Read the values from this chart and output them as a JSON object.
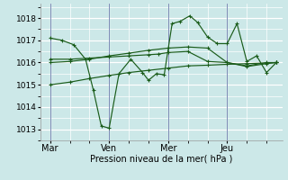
{
  "background_color": "#cce8e8",
  "grid_color": "#ffffff",
  "line_color": "#1a5c1a",
  "xlabel": "Pression niveau de la mer( hPa )",
  "xtick_labels": [
    "Mar",
    "Ven",
    "Mer",
    "Jeu"
  ],
  "xtick_positions": [
    0,
    3,
    6,
    9
  ],
  "ytick_values": [
    1013,
    1014,
    1015,
    1016,
    1017,
    1018
  ],
  "ylim": [
    1012.5,
    1018.65
  ],
  "xlim": [
    -0.5,
    11.8
  ],
  "vline_positions": [
    0,
    3,
    6,
    9
  ],
  "series": [
    {
      "x": [
        0,
        0.6,
        1.2,
        1.8,
        2.2,
        2.6,
        3.0,
        3.5,
        4.1,
        4.7,
        5.0,
        5.4,
        5.8,
        6.2,
        6.6,
        7.1,
        7.5,
        8.0,
        8.5,
        9.0,
        9.5,
        10.0,
        10.5,
        11.0,
        11.5
      ],
      "y": [
        1017.1,
        1017.0,
        1016.8,
        1016.15,
        1014.75,
        1013.15,
        1013.05,
        1015.5,
        1016.15,
        1015.55,
        1015.2,
        1015.5,
        1015.45,
        1017.75,
        1017.85,
        1018.1,
        1017.8,
        1017.15,
        1016.85,
        1016.85,
        1017.75,
        1016.05,
        1016.3,
        1015.55,
        1016.0
      ]
    },
    {
      "x": [
        0,
        1,
        2,
        3,
        4,
        5,
        5.5,
        6,
        7,
        8,
        9,
        10,
        11,
        11.5
      ],
      "y": [
        1016.15,
        1016.15,
        1016.2,
        1016.25,
        1016.3,
        1016.35,
        1016.38,
        1016.45,
        1016.5,
        1016.05,
        1016.0,
        1015.85,
        1016.0,
        1016.0
      ]
    },
    {
      "x": [
        0,
        1,
        2,
        3,
        4,
        5,
        6,
        7,
        8,
        9,
        10,
        11,
        11.5
      ],
      "y": [
        1015.0,
        1015.12,
        1015.28,
        1015.42,
        1015.55,
        1015.65,
        1015.75,
        1015.85,
        1015.88,
        1015.92,
        1015.95,
        1015.98,
        1016.0
      ]
    },
    {
      "x": [
        0,
        1,
        2,
        3,
        4,
        5,
        6,
        7,
        8,
        9,
        10,
        11,
        11.5
      ],
      "y": [
        1016.0,
        1016.05,
        1016.15,
        1016.3,
        1016.42,
        1016.55,
        1016.65,
        1016.7,
        1016.65,
        1016.0,
        1015.82,
        1015.95,
        1016.0
      ]
    }
  ]
}
